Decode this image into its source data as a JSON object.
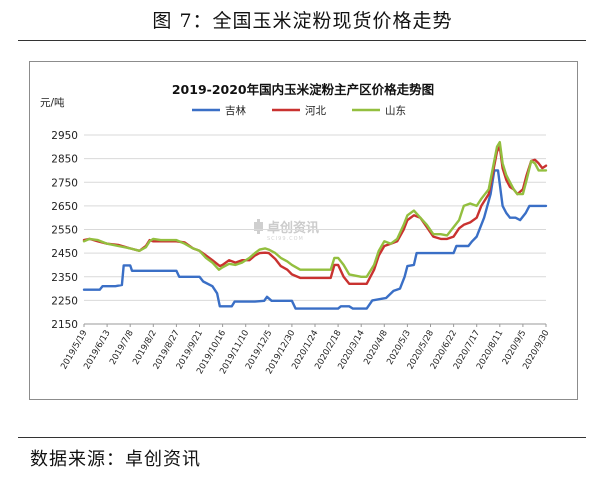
{
  "figure": {
    "title": "图 7：全国玉米淀粉现货价格走势",
    "source": "数据来源：卓创资讯"
  },
  "colors": {
    "jilin": "#3a6fc6",
    "hebei": "#c93230",
    "shandong": "#93bf3f",
    "grid": "#d9d9d9"
  },
  "chart_data": {
    "type": "line",
    "title": "2019-2020年国内玉米淀粉主产区价格走势图",
    "ylabel": "元/吨",
    "xlabel": "",
    "ylim": [
      2150,
      2950
    ],
    "yticks": [
      2150,
      2250,
      2350,
      2450,
      2550,
      2650,
      2750,
      2850,
      2950
    ],
    "grid": "horizontal",
    "legend": "top-center",
    "watermark": "卓创资讯",
    "x_start": "2019-05-19",
    "x_end": "2020-09-30",
    "xticks": [
      {
        "date": "2019-05-19",
        "label": "2019/5/19"
      },
      {
        "date": "2019-06-13",
        "label": "2019/6/13"
      },
      {
        "date": "2019-07-08",
        "label": "2019/7/8"
      },
      {
        "date": "2019-08-02",
        "label": "2019/8/2"
      },
      {
        "date": "2019-08-27",
        "label": "2019/8/27"
      },
      {
        "date": "2019-09-21",
        "label": "2019/9/21"
      },
      {
        "date": "2019-10-16",
        "label": "2019/10/16"
      },
      {
        "date": "2019-11-10",
        "label": "2019/11/10"
      },
      {
        "date": "2019-12-05",
        "label": "2019/12/5"
      },
      {
        "date": "2019-12-30",
        "label": "2019/12/30"
      },
      {
        "date": "2020-01-24",
        "label": "2020/1/24"
      },
      {
        "date": "2020-02-18",
        "label": "2020/2/18"
      },
      {
        "date": "2020-03-14",
        "label": "2020/3/14"
      },
      {
        "date": "2020-04-08",
        "label": "2020/4/8"
      },
      {
        "date": "2020-05-03",
        "label": "2020/5/3"
      },
      {
        "date": "2020-05-28",
        "label": "2020/5/28"
      },
      {
        "date": "2020-06-22",
        "label": "2020/6/22"
      },
      {
        "date": "2020-07-17",
        "label": "2020/7/17"
      },
      {
        "date": "2020-08-11",
        "label": "2020/8/11"
      },
      {
        "date": "2020-09-05",
        "label": "2020/9/5"
      },
      {
        "date": "2020-09-30",
        "label": "2020/9/30"
      }
    ],
    "series": [
      {
        "name": "吉林",
        "color_key": "jilin",
        "points": [
          [
            "2019-05-19",
            2295
          ],
          [
            "2019-06-05",
            2295
          ],
          [
            "2019-06-08",
            2310
          ],
          [
            "2019-06-22",
            2310
          ],
          [
            "2019-06-29",
            2315
          ],
          [
            "2019-07-01",
            2398
          ],
          [
            "2019-07-08",
            2398
          ],
          [
            "2019-07-10",
            2375
          ],
          [
            "2019-08-02",
            2375
          ],
          [
            "2019-08-27",
            2375
          ],
          [
            "2019-08-30",
            2350
          ],
          [
            "2019-09-21",
            2350
          ],
          [
            "2019-09-25",
            2330
          ],
          [
            "2019-10-05",
            2310
          ],
          [
            "2019-10-10",
            2280
          ],
          [
            "2019-10-13",
            2225
          ],
          [
            "2019-10-26",
            2225
          ],
          [
            "2019-10-29",
            2245
          ],
          [
            "2019-11-20",
            2245
          ],
          [
            "2019-11-30",
            2248
          ],
          [
            "2019-12-03",
            2265
          ],
          [
            "2019-12-08",
            2248
          ],
          [
            "2019-12-30",
            2248
          ],
          [
            "2020-01-03",
            2215
          ],
          [
            "2020-01-24",
            2215
          ],
          [
            "2020-02-18",
            2215
          ],
          [
            "2020-02-21",
            2225
          ],
          [
            "2020-03-01",
            2225
          ],
          [
            "2020-03-05",
            2215
          ],
          [
            "2020-03-20",
            2215
          ],
          [
            "2020-03-26",
            2250
          ],
          [
            "2020-04-10",
            2260
          ],
          [
            "2020-04-18",
            2290
          ],
          [
            "2020-04-25",
            2300
          ],
          [
            "2020-04-30",
            2350
          ],
          [
            "2020-05-03",
            2395
          ],
          [
            "2020-05-10",
            2400
          ],
          [
            "2020-05-13",
            2450
          ],
          [
            "2020-05-28",
            2450
          ],
          [
            "2020-06-22",
            2450
          ],
          [
            "2020-06-25",
            2480
          ],
          [
            "2020-07-08",
            2480
          ],
          [
            "2020-07-12",
            2500
          ],
          [
            "2020-07-17",
            2520
          ],
          [
            "2020-07-25",
            2600
          ],
          [
            "2020-08-01",
            2700
          ],
          [
            "2020-08-05",
            2800
          ],
          [
            "2020-08-09",
            2800
          ],
          [
            "2020-08-14",
            2650
          ],
          [
            "2020-08-18",
            2620
          ],
          [
            "2020-08-22",
            2600
          ],
          [
            "2020-08-28",
            2600
          ],
          [
            "2020-09-02",
            2590
          ],
          [
            "2020-09-08",
            2620
          ],
          [
            "2020-09-12",
            2650
          ],
          [
            "2020-09-30",
            2650
          ]
        ]
      },
      {
        "name": "河北",
        "color_key": "hebei",
        "points": [
          [
            "2019-05-19",
            2505
          ],
          [
            "2019-05-25",
            2510
          ],
          [
            "2019-06-03",
            2500
          ],
          [
            "2019-06-13",
            2490
          ],
          [
            "2019-06-25",
            2485
          ],
          [
            "2019-07-08",
            2470
          ],
          [
            "2019-07-18",
            2460
          ],
          [
            "2019-07-25",
            2480
          ],
          [
            "2019-07-29",
            2505
          ],
          [
            "2019-08-02",
            2500
          ],
          [
            "2019-08-10",
            2500
          ],
          [
            "2019-08-27",
            2500
          ],
          [
            "2019-09-05",
            2495
          ],
          [
            "2019-09-14",
            2470
          ],
          [
            "2019-09-21",
            2460
          ],
          [
            "2019-09-28",
            2440
          ],
          [
            "2019-10-05",
            2420
          ],
          [
            "2019-10-13",
            2395
          ],
          [
            "2019-10-16",
            2400
          ],
          [
            "2019-10-23",
            2420
          ],
          [
            "2019-10-30",
            2410
          ],
          [
            "2019-11-06",
            2420
          ],
          [
            "2019-11-14",
            2420
          ],
          [
            "2019-11-20",
            2440
          ],
          [
            "2019-11-25",
            2450
          ],
          [
            "2019-12-01",
            2452
          ],
          [
            "2019-12-05",
            2450
          ],
          [
            "2019-12-12",
            2425
          ],
          [
            "2019-12-18",
            2395
          ],
          [
            "2019-12-25",
            2380
          ],
          [
            "2019-12-30",
            2360
          ],
          [
            "2020-01-08",
            2345
          ],
          [
            "2020-01-24",
            2345
          ],
          [
            "2020-02-10",
            2345
          ],
          [
            "2020-02-14",
            2400
          ],
          [
            "2020-02-18",
            2400
          ],
          [
            "2020-02-24",
            2350
          ],
          [
            "2020-03-01",
            2320
          ],
          [
            "2020-03-14",
            2320
          ],
          [
            "2020-03-20",
            2320
          ],
          [
            "2020-03-28",
            2380
          ],
          [
            "2020-04-02",
            2440
          ],
          [
            "2020-04-08",
            2480
          ],
          [
            "2020-04-15",
            2490
          ],
          [
            "2020-04-22",
            2500
          ],
          [
            "2020-04-29",
            2550
          ],
          [
            "2020-05-03",
            2590
          ],
          [
            "2020-05-10",
            2610
          ],
          [
            "2020-05-17",
            2600
          ],
          [
            "2020-05-24",
            2560
          ],
          [
            "2020-05-31",
            2520
          ],
          [
            "2020-06-08",
            2510
          ],
          [
            "2020-06-15",
            2510
          ],
          [
            "2020-06-22",
            2520
          ],
          [
            "2020-06-28",
            2555
          ],
          [
            "2020-07-03",
            2570
          ],
          [
            "2020-07-10",
            2580
          ],
          [
            "2020-07-17",
            2600
          ],
          [
            "2020-07-22",
            2650
          ],
          [
            "2020-07-30",
            2700
          ],
          [
            "2020-08-03",
            2780
          ],
          [
            "2020-08-08",
            2880
          ],
          [
            "2020-08-11",
            2900
          ],
          [
            "2020-08-14",
            2810
          ],
          [
            "2020-08-18",
            2760
          ],
          [
            "2020-08-22",
            2730
          ],
          [
            "2020-08-26",
            2720
          ],
          [
            "2020-08-30",
            2700
          ],
          [
            "2020-09-05",
            2720
          ],
          [
            "2020-09-09",
            2780
          ],
          [
            "2020-09-14",
            2840
          ],
          [
            "2020-09-18",
            2845
          ],
          [
            "2020-09-22",
            2830
          ],
          [
            "2020-09-26",
            2810
          ],
          [
            "2020-09-30",
            2820
          ]
        ]
      },
      {
        "name": "山东",
        "color_key": "shandong",
        "points": [
          [
            "2019-05-19",
            2500
          ],
          [
            "2019-05-25",
            2510
          ],
          [
            "2019-06-03",
            2505
          ],
          [
            "2019-06-13",
            2490
          ],
          [
            "2019-06-25",
            2480
          ],
          [
            "2019-07-08",
            2470
          ],
          [
            "2019-07-18",
            2460
          ],
          [
            "2019-07-25",
            2475
          ],
          [
            "2019-07-29",
            2500
          ],
          [
            "2019-08-02",
            2510
          ],
          [
            "2019-08-10",
            2505
          ],
          [
            "2019-08-27",
            2505
          ],
          [
            "2019-09-05",
            2490
          ],
          [
            "2019-09-14",
            2470
          ],
          [
            "2019-09-21",
            2460
          ],
          [
            "2019-09-28",
            2430
          ],
          [
            "2019-10-05",
            2410
          ],
          [
            "2019-10-12",
            2380
          ],
          [
            "2019-10-16",
            2390
          ],
          [
            "2019-10-23",
            2405
          ],
          [
            "2019-10-30",
            2400
          ],
          [
            "2019-11-06",
            2410
          ],
          [
            "2019-11-14",
            2430
          ],
          [
            "2019-11-20",
            2450
          ],
          [
            "2019-11-25",
            2465
          ],
          [
            "2019-12-01",
            2470
          ],
          [
            "2019-12-05",
            2465
          ],
          [
            "2019-12-12",
            2450
          ],
          [
            "2019-12-18",
            2430
          ],
          [
            "2019-12-25",
            2415
          ],
          [
            "2019-12-30",
            2400
          ],
          [
            "2020-01-08",
            2380
          ],
          [
            "2020-01-24",
            2380
          ],
          [
            "2020-02-10",
            2380
          ],
          [
            "2020-02-14",
            2430
          ],
          [
            "2020-02-18",
            2430
          ],
          [
            "2020-02-24",
            2400
          ],
          [
            "2020-03-01",
            2360
          ],
          [
            "2020-03-14",
            2350
          ],
          [
            "2020-03-20",
            2350
          ],
          [
            "2020-03-28",
            2400
          ],
          [
            "2020-04-02",
            2460
          ],
          [
            "2020-04-08",
            2500
          ],
          [
            "2020-04-15",
            2490
          ],
          [
            "2020-04-22",
            2510
          ],
          [
            "2020-04-29",
            2570
          ],
          [
            "2020-05-03",
            2610
          ],
          [
            "2020-05-10",
            2630
          ],
          [
            "2020-05-17",
            2600
          ],
          [
            "2020-05-24",
            2570
          ],
          [
            "2020-05-31",
            2530
          ],
          [
            "2020-06-08",
            2530
          ],
          [
            "2020-06-15",
            2525
          ],
          [
            "2020-06-22",
            2560
          ],
          [
            "2020-06-28",
            2590
          ],
          [
            "2020-07-03",
            2650
          ],
          [
            "2020-07-10",
            2660
          ],
          [
            "2020-07-17",
            2650
          ],
          [
            "2020-07-22",
            2680
          ],
          [
            "2020-07-30",
            2720
          ],
          [
            "2020-08-03",
            2800
          ],
          [
            "2020-08-08",
            2900
          ],
          [
            "2020-08-11",
            2920
          ],
          [
            "2020-08-14",
            2830
          ],
          [
            "2020-08-18",
            2780
          ],
          [
            "2020-08-22",
            2750
          ],
          [
            "2020-08-26",
            2720
          ],
          [
            "2020-08-30",
            2700
          ],
          [
            "2020-09-05",
            2700
          ],
          [
            "2020-09-09",
            2760
          ],
          [
            "2020-09-14",
            2840
          ],
          [
            "2020-09-18",
            2830
          ],
          [
            "2020-09-22",
            2800
          ],
          [
            "2020-09-26",
            2800
          ],
          [
            "2020-09-30",
            2800
          ]
        ]
      }
    ]
  }
}
